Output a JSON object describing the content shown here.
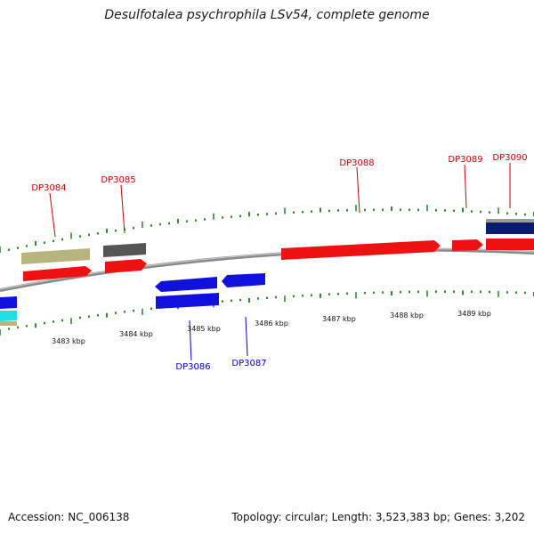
{
  "title": "Desulfotalea psychrophila LSv54, complete genome",
  "footer": {
    "accession": "Accession: NC_006138",
    "summary": "Topology: circular; Length: 3,523,383 bp; Genes: 3,202"
  },
  "colors": {
    "backbone": "#8a8a8a",
    "tick": "#2e8b2e",
    "label_forward": "#cc0000",
    "label_reverse": "#0000cc",
    "label_tick": "#111111",
    "features": {
      "red": "#ee1111",
      "blue": "#1111dd",
      "khaki": "#b8b47e",
      "gray": "#555555",
      "navy": "#0a1a6e",
      "cyan": "#22dddd"
    }
  },
  "scale_labels": [
    "3483 kbp",
    "3484 kbp",
    "3485 kbp",
    "3486 kbp",
    "3487 kbp",
    "3488 kbp",
    "3489 kbp"
  ],
  "gene_labels": {
    "forward": [
      "DP3084",
      "DP3085",
      "DP3088",
      "DP3089",
      "DP3090"
    ],
    "reverse": [
      "DP3086",
      "DP3087"
    ]
  },
  "features": [
    {
      "color": "khaki",
      "strand": "forward"
    },
    {
      "color": "red",
      "strand": "forward"
    },
    {
      "color": "gray",
      "strand": "forward"
    },
    {
      "color": "red",
      "strand": "forward"
    },
    {
      "color": "red",
      "strand": "forward"
    },
    {
      "color": "red",
      "strand": "forward"
    },
    {
      "color": "navy",
      "strand": "forward"
    },
    {
      "color": "red",
      "strand": "forward"
    },
    {
      "color": "blue",
      "strand": "reverse"
    },
    {
      "color": "blue",
      "strand": "reverse"
    },
    {
      "color": "blue",
      "strand": "reverse"
    },
    {
      "color": "blue",
      "strand": "reverse"
    },
    {
      "color": "cyan",
      "strand": "reverse"
    }
  ]
}
